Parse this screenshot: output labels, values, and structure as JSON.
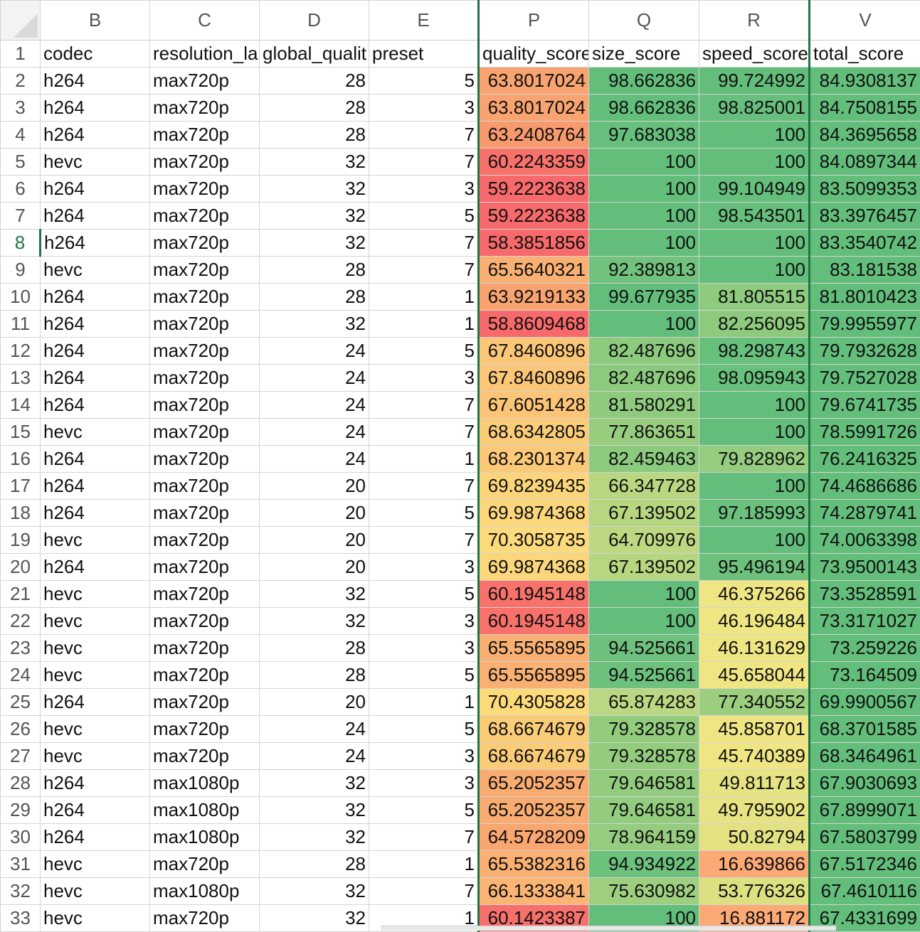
{
  "columns": [
    "B",
    "C",
    "D",
    "E",
    "P",
    "Q",
    "R",
    "V"
  ],
  "active_row": 8,
  "headers": [
    "codec",
    "resolution_la",
    "global_qualit",
    "preset",
    "quality_score",
    "size_score",
    "speed_score",
    "total_score"
  ],
  "rows": [
    {
      "n": "2",
      "codec": "h264",
      "res": "max720p",
      "gq": "28",
      "preset": "5",
      "q": "63.8017024",
      "s": "98.662836",
      "sp": "99.724992",
      "t": "84.9308137",
      "qc": "#f8a370",
      "sc": "#63be7b",
      "spc": "#63be7b"
    },
    {
      "n": "3",
      "codec": "h264",
      "res": "max720p",
      "gq": "28",
      "preset": "3",
      "q": "63.8017024",
      "s": "98.662836",
      "sp": "98.825001",
      "t": "84.7508155",
      "qc": "#f8a370",
      "sc": "#63be7b",
      "spc": "#66bf7c"
    },
    {
      "n": "4",
      "codec": "h264",
      "res": "max720p",
      "gq": "28",
      "preset": "7",
      "q": "63.2408764",
      "s": "97.683038",
      "sp": "100",
      "t": "84.3695658",
      "qc": "#f89a6e",
      "sc": "#66bf7c",
      "spc": "#63be7b"
    },
    {
      "n": "5",
      "codec": "hevc",
      "res": "max720p",
      "gq": "32",
      "preset": "7",
      "q": "60.2243359",
      "s": "100",
      "sp": "100",
      "t": "84.0897344",
      "qc": "#f8716b",
      "sc": "#63be7b",
      "spc": "#63be7b"
    },
    {
      "n": "6",
      "codec": "h264",
      "res": "max720p",
      "gq": "32",
      "preset": "3",
      "q": "59.2223638",
      "s": "100",
      "sp": "99.104949",
      "t": "83.5099353",
      "qc": "#f8696b",
      "sc": "#63be7b",
      "spc": "#65bf7c"
    },
    {
      "n": "7",
      "codec": "h264",
      "res": "max720p",
      "gq": "32",
      "preset": "5",
      "q": "59.2223638",
      "s": "100",
      "sp": "98.543501",
      "t": "83.3976457",
      "qc": "#f8696b",
      "sc": "#63be7b",
      "spc": "#66bf7c"
    },
    {
      "n": "8",
      "codec": "h264",
      "res": "max720p",
      "gq": "32",
      "preset": "7",
      "q": "58.3851856",
      "s": "100",
      "sp": "100",
      "t": "83.3540742",
      "qc": "#f8696b",
      "sc": "#63be7b",
      "spc": "#63be7b"
    },
    {
      "n": "9",
      "codec": "hevc",
      "res": "max720p",
      "gq": "28",
      "preset": "7",
      "q": "65.5640321",
      "s": "92.389813",
      "sp": "100",
      "t": "83.181538",
      "qc": "#f9b072",
      "sc": "#71c27c",
      "spc": "#63be7b"
    },
    {
      "n": "10",
      "codec": "h264",
      "res": "max720p",
      "gq": "28",
      "preset": "1",
      "q": "63.9219133",
      "s": "99.677935",
      "sp": "81.805515",
      "t": "81.8010423",
      "qc": "#f8a370",
      "sc": "#63be7b",
      "spc": "#8fcb7e"
    },
    {
      "n": "11",
      "codec": "h264",
      "res": "max720p",
      "gq": "32",
      "preset": "1",
      "q": "58.8609468",
      "s": "100",
      "sp": "82.256095",
      "t": "79.9955977",
      "qc": "#f8696b",
      "sc": "#63be7b",
      "spc": "#8dca7e"
    },
    {
      "n": "12",
      "codec": "h264",
      "res": "max720p",
      "gq": "24",
      "preset": "5",
      "q": "67.8460896",
      "s": "82.487696",
      "sp": "98.298743",
      "t": "79.7932628",
      "qc": "#fbc677",
      "sc": "#8cca7e",
      "spc": "#67c07c"
    },
    {
      "n": "13",
      "codec": "h264",
      "res": "max720p",
      "gq": "24",
      "preset": "3",
      "q": "67.8460896",
      "s": "82.487696",
      "sp": "98.095943",
      "t": "79.7527028",
      "qc": "#fbc677",
      "sc": "#8cca7e",
      "spc": "#67c07c"
    },
    {
      "n": "14",
      "codec": "h264",
      "res": "max720p",
      "gq": "24",
      "preset": "7",
      "q": "67.6051428",
      "s": "81.580291",
      "sp": "100",
      "t": "79.6741735",
      "qc": "#fbc476",
      "sc": "#8ecb7e",
      "spc": "#63be7b"
    },
    {
      "n": "15",
      "codec": "hevc",
      "res": "max720p",
      "gq": "24",
      "preset": "7",
      "q": "68.6342805",
      "s": "77.863651",
      "sp": "100",
      "t": "78.5991726",
      "qc": "#fbcc78",
      "sc": "#98cd7f",
      "spc": "#63be7b"
    },
    {
      "n": "16",
      "codec": "h264",
      "res": "max720p",
      "gq": "24",
      "preset": "1",
      "q": "68.2301374",
      "s": "82.459463",
      "sp": "79.828962",
      "t": "76.2416325",
      "qc": "#fbc977",
      "sc": "#8cca7e",
      "spc": "#95cc7f"
    },
    {
      "n": "17",
      "codec": "h264",
      "res": "max720p",
      "gq": "20",
      "preset": "7",
      "q": "69.8239435",
      "s": "66.347728",
      "sp": "100",
      "t": "74.4686686",
      "qc": "#fcd57a",
      "sc": "#b8d780",
      "spc": "#63be7b"
    },
    {
      "n": "18",
      "codec": "h264",
      "res": "max720p",
      "gq": "20",
      "preset": "5",
      "q": "69.9874368",
      "s": "67.139502",
      "sp": "97.185993",
      "t": "74.2879741",
      "qc": "#fcd67a",
      "sc": "#b6d680",
      "spc": "#6ac07c"
    },
    {
      "n": "19",
      "codec": "hevc",
      "res": "max720p",
      "gq": "20",
      "preset": "7",
      "q": "70.3058735",
      "s": "64.709976",
      "sp": "100",
      "t": "74.0063398",
      "qc": "#fdda7b",
      "sc": "#bdd881",
      "spc": "#63be7b"
    },
    {
      "n": "20",
      "codec": "h264",
      "res": "max720p",
      "gq": "20",
      "preset": "3",
      "q": "69.9874368",
      "s": "67.139502",
      "sp": "95.496194",
      "t": "73.9500143",
      "qc": "#fcd67a",
      "sc": "#b6d680",
      "spc": "#6ec17c"
    },
    {
      "n": "21",
      "codec": "hevc",
      "res": "max720p",
      "gq": "32",
      "preset": "5",
      "q": "60.1945148",
      "s": "100",
      "sp": "46.375266",
      "t": "73.3528591",
      "qc": "#f8716b",
      "sc": "#63be7b",
      "spc": "#eee683"
    },
    {
      "n": "22",
      "codec": "hevc",
      "res": "max720p",
      "gq": "32",
      "preset": "3",
      "q": "60.1945148",
      "s": "100",
      "sp": "46.196484",
      "t": "73.3171027",
      "qc": "#f8716b",
      "sc": "#63be7b",
      "spc": "#eee683"
    },
    {
      "n": "23",
      "codec": "hevc",
      "res": "max720p",
      "gq": "28",
      "preset": "3",
      "q": "65.5565895",
      "s": "94.525661",
      "sp": "46.131629",
      "t": "73.259226",
      "qc": "#f9b072",
      "sc": "#6dc17c",
      "spc": "#eee683"
    },
    {
      "n": "24",
      "codec": "hevc",
      "res": "max720p",
      "gq": "28",
      "preset": "5",
      "q": "65.5565895",
      "s": "94.525661",
      "sp": "45.658044",
      "t": "73.164509",
      "qc": "#f9b072",
      "sc": "#6dc17c",
      "spc": "#efe683"
    },
    {
      "n": "25",
      "codec": "h264",
      "res": "max720p",
      "gq": "20",
      "preset": "1",
      "q": "70.4305828",
      "s": "65.874283",
      "sp": "77.340552",
      "t": "69.9900567",
      "qc": "#fddb7b",
      "sc": "#bad781",
      "spc": "#9bce7f"
    },
    {
      "n": "26",
      "codec": "hevc",
      "res": "max720p",
      "gq": "24",
      "preset": "5",
      "q": "68.6674679",
      "s": "79.328578",
      "sp": "45.858701",
      "t": "68.3701585",
      "qc": "#fbcc78",
      "sc": "#94cc7e",
      "spc": "#efe683"
    },
    {
      "n": "27",
      "codec": "hevc",
      "res": "max720p",
      "gq": "24",
      "preset": "3",
      "q": "68.6674679",
      "s": "79.328578",
      "sp": "45.740389",
      "t": "68.3464961",
      "qc": "#fbcc78",
      "sc": "#94cc7e",
      "spc": "#efe683"
    },
    {
      "n": "28",
      "codec": "h264",
      "res": "max1080p",
      "gq": "32",
      "preset": "3",
      "q": "65.2052357",
      "s": "79.646581",
      "sp": "49.811713",
      "t": "67.9030693",
      "qc": "#f9ac71",
      "sc": "#93cc7e",
      "spc": "#e6e382"
    },
    {
      "n": "29",
      "codec": "h264",
      "res": "max1080p",
      "gq": "32",
      "preset": "5",
      "q": "65.2052357",
      "s": "79.646581",
      "sp": "49.795902",
      "t": "67.8999071",
      "qc": "#f9ac71",
      "sc": "#93cc7e",
      "spc": "#e6e382"
    },
    {
      "n": "30",
      "codec": "h264",
      "res": "max1080p",
      "gq": "32",
      "preset": "7",
      "q": "64.5728209",
      "s": "78.964159",
      "sp": "50.82794",
      "t": "67.5803799",
      "qc": "#f9a670",
      "sc": "#95cc7f",
      "spc": "#e3e282"
    },
    {
      "n": "31",
      "codec": "hevc",
      "res": "max720p",
      "gq": "28",
      "preset": "1",
      "q": "65.5382316",
      "s": "94.934922",
      "sp": "16.639866",
      "t": "67.5172346",
      "qc": "#f9b072",
      "sc": "#6cc17c",
      "spc": "#fba975"
    },
    {
      "n": "32",
      "codec": "hevc",
      "res": "max1080p",
      "gq": "32",
      "preset": "7",
      "q": "66.1333841",
      "s": "75.630982",
      "sp": "53.776326",
      "t": "67.4610116",
      "qc": "#fab574",
      "sc": "#9ecf7f",
      "spc": "#dce081"
    },
    {
      "n": "33",
      "codec": "hevc",
      "res": "max720p",
      "gq": "32",
      "preset": "1",
      "q": "60.1423387",
      "s": "100",
      "sp": "16.881172",
      "t": "67.4331699",
      "qc": "#f8706b",
      "sc": "#63be7b",
      "spc": "#fbaa75"
    }
  ],
  "total_color": "#63be7b"
}
